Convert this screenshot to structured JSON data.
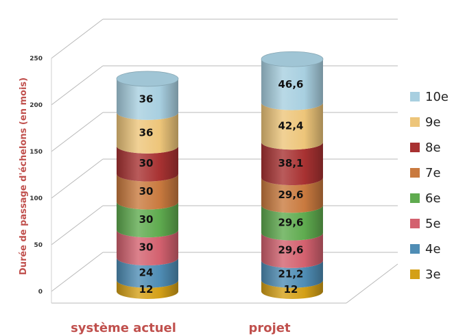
{
  "chart_data": {
    "type": "bar",
    "stacked": true,
    "style": "3d-cylinder",
    "title": "",
    "xlabel": "",
    "ylabel": "Durée de passage d'échelons (en mois)",
    "ylim": [
      0,
      250
    ],
    "yticks": [
      "0",
      "50",
      "100",
      "150",
      "200",
      "250"
    ],
    "grid": true,
    "legend_position": "right",
    "categories": [
      "système actuel",
      "projet"
    ],
    "series": [
      {
        "name": "3e",
        "color": "#d4a017",
        "values": [
          12,
          12
        ],
        "labels": [
          "12",
          "12"
        ]
      },
      {
        "name": "4e",
        "color": "#4f8db5",
        "values": [
          24,
          21.2
        ],
        "labels": [
          "24",
          "21,2"
        ]
      },
      {
        "name": "5e",
        "color": "#d3616f",
        "values": [
          30,
          29.6
        ],
        "labels": [
          "30",
          "29,6"
        ]
      },
      {
        "name": "6e",
        "color": "#5fab4f",
        "values": [
          30,
          29.6
        ],
        "labels": [
          "30",
          "29,6"
        ]
      },
      {
        "name": "7e",
        "color": "#c97a3f",
        "values": [
          30,
          29.6
        ],
        "labels": [
          "30",
          "29,6"
        ]
      },
      {
        "name": "8e",
        "color": "#a83232",
        "values": [
          30,
          38.1
        ],
        "labels": [
          "30",
          "38,1"
        ]
      },
      {
        "name": "9e",
        "color": "#edc57a",
        "values": [
          36,
          42.4
        ],
        "labels": [
          "36",
          "42,4"
        ]
      },
      {
        "name": "10e",
        "color": "#a8cfe0",
        "values": [
          36,
          46.6
        ],
        "labels": [
          "36",
          "46,6"
        ]
      }
    ]
  }
}
